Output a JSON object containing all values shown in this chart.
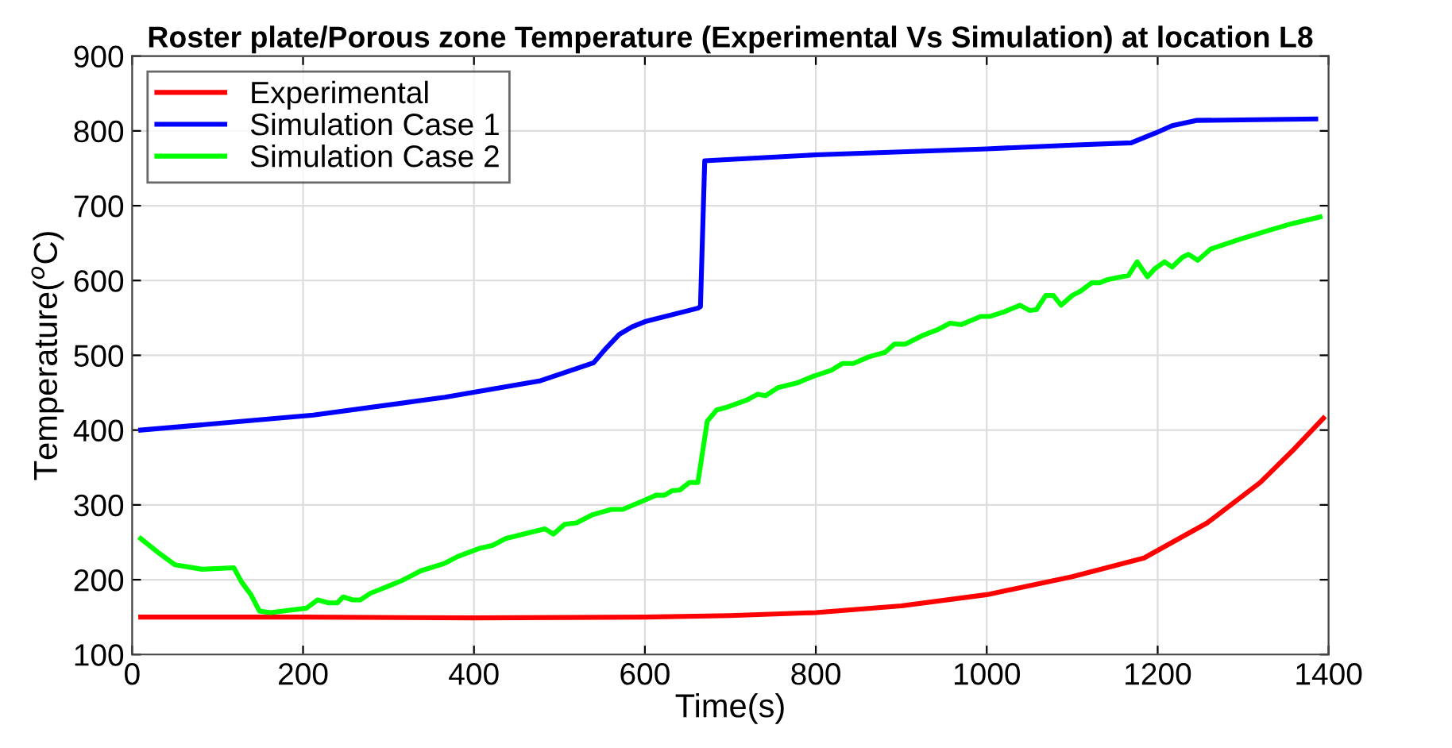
{
  "chart_data": {
    "type": "line",
    "title": "Roster plate/Porous zone Temperature (Experimental Vs Simulation) at location L8",
    "xlabel": "Time(s)",
    "ylabel": "Temperature($^{o}$C)",
    "xlim": [
      0,
      1400
    ],
    "xticks": [
      0,
      200,
      400,
      600,
      800,
      1000,
      1200,
      1400
    ],
    "ylim": [
      100,
      900
    ],
    "yticks": [
      100,
      200,
      300,
      400,
      500,
      600,
      700,
      800,
      900
    ],
    "grid": true,
    "legend": "top left",
    "line_style": "solid",
    "marker": "none",
    "series": [
      {
        "name": "Experimental",
        "color": "#ff0000",
        "x": [
          10,
          200,
          400,
          600,
          700,
          800,
          900,
          1000,
          1100,
          1184,
          1258,
          1320,
          1360,
          1394
        ],
        "values": [
          150,
          150,
          149,
          150,
          152,
          156,
          165,
          180,
          204,
          229,
          276,
          330,
          375,
          416
        ]
      },
      {
        "name": "Simulation Case 1",
        "color": "#0000ff",
        "x": [
          10,
          212,
          366,
          478,
          540,
          555,
          570,
          585,
          600,
          662,
          665,
          670,
          800,
          900,
          1000,
          1100,
          1169,
          1197,
          1217,
          1245,
          1385
        ],
        "values": [
          400,
          420,
          444,
          466,
          490,
          510,
          528,
          538,
          545,
          563,
          565,
          760,
          768,
          772,
          776,
          781,
          784,
          797,
          807,
          814,
          816
        ]
      },
      {
        "name": "Simulation Case 2",
        "color": "#00ff00",
        "x": [
          10,
          32,
          50,
          82,
          119,
          128,
          139,
          149,
          162,
          204,
          217,
          230,
          240,
          247,
          258,
          267,
          279,
          288,
          301,
          316,
          338,
          366,
          381,
          407,
          422,
          437,
          465,
          483,
          493,
          506,
          520,
          539,
          561,
          574,
          599,
          613,
          623,
          632,
          641,
          652,
          662,
          673,
          684,
          697,
          719,
          732,
          741,
          756,
          778,
          797,
          818,
          831,
          844,
          862,
          881,
          892,
          905,
          924,
          942,
          957,
          970,
          993,
          1004,
          1020,
          1039,
          1050,
          1058,
          1069,
          1078,
          1087,
          1100,
          1110,
          1123,
          1132,
          1141,
          1166,
          1176,
          1188,
          1197,
          1208,
          1217,
          1229,
          1236,
          1247,
          1262,
          1296,
          1327,
          1357,
          1390
        ],
        "values": [
          255,
          235,
          220,
          214,
          216,
          197,
          180,
          158,
          156,
          162,
          173,
          169,
          169,
          177,
          173,
          173,
          182,
          186,
          192,
          199,
          212,
          222,
          231,
          242,
          246,
          255,
          263,
          268,
          261,
          274,
          276,
          287,
          294,
          294,
          306,
          313,
          313,
          319,
          320,
          330,
          330,
          412,
          427,
          431,
          440,
          448,
          446,
          457,
          463,
          472,
          480,
          489,
          489,
          498,
          504,
          515,
          515,
          526,
          534,
          543,
          541,
          552,
          552,
          558,
          567,
          560,
          561,
          580,
          580,
          567,
          580,
          586,
          597,
          597,
          601,
          607,
          625,
          605,
          616,
          625,
          618,
          631,
          635,
          627,
          642,
          655,
          666,
          676,
          685
        ]
      }
    ]
  }
}
